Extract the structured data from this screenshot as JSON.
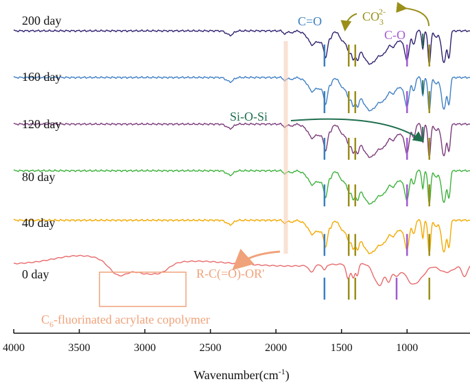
{
  "chart_data": {
    "type": "line",
    "title": "",
    "xlabel": "Wavenumber(cm",
    "xlabel_sup": "-1",
    "xlabel_close": ")",
    "ylabel": "",
    "xlim": [
      4000,
      520
    ],
    "x_reversed": true,
    "x_ticks": [
      4000,
      3500,
      3000,
      2500,
      2000,
      1500,
      1000
    ],
    "grid": false,
    "series": [
      {
        "name": "200 day",
        "color": "#2e1f6e",
        "baseline": 0.0,
        "curve": "modified"
      },
      {
        "name": "160 day",
        "color": "#3f7fc4",
        "baseline": 0.8,
        "curve": "modified"
      },
      {
        "name": "120 day",
        "color": "#7a3a7a",
        "baseline": 1.6,
        "curve": "modified"
      },
      {
        "name": "80 day",
        "color": "#3db13c",
        "baseline": 2.4,
        "curve": "modified"
      },
      {
        "name": "40 day",
        "color": "#f2a900",
        "baseline": 3.25,
        "curve": "modified"
      },
      {
        "name": "0 day",
        "color": "#e8696b",
        "baseline": 4.0,
        "curve": "copolymer"
      }
    ],
    "annotations": {
      "co": {
        "text": "C=O",
        "color": "#3a7fbf"
      },
      "co3_base": "CO",
      "co3_sub": "3",
      "co3_sup": "2-",
      "co3_color": "#9a8f1a",
      "c_o": {
        "text": "C-O",
        "color": "#a05bd0"
      },
      "si_o_si": {
        "text": "Si-O-Si",
        "color": "#1f6e4e"
      },
      "ester": {
        "text": "R-C(=O)-OR'",
        "color": "#f0a27a"
      },
      "copolymer_prefix": "C",
      "copolymer_sub": "6",
      "copolymer_suffix": "-fluorinated acrylate copolymer",
      "copolymer_color": "#f0a27a"
    }
  }
}
